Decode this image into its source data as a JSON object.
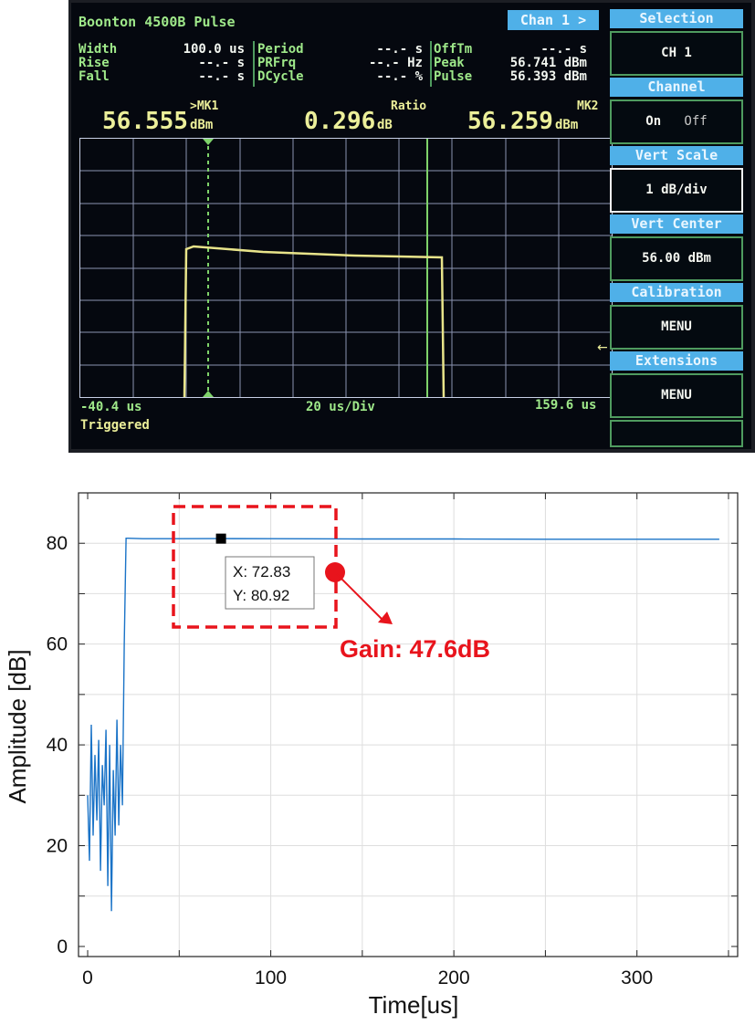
{
  "scope": {
    "title": "Boonton 4500B Pulse",
    "chan_tab": "Chan 1 >",
    "meas": {
      "width_label": "Width",
      "width_value": "100.0 us",
      "rise_label": "Rise",
      "rise_value": "--.- s",
      "fall_label": "Fall",
      "fall_value": "--.- s",
      "period_label": "Period",
      "period_value": "--.- s",
      "prfrq_label": "PRFrq",
      "prfrq_value": "--.- Hz",
      "dcycle_label": "DCycle",
      "dcycle_value": "--.- %",
      "offtm_label": "OffTm",
      "offtm_value": "--.- s",
      "peak_label": "Peak",
      "peak_value": "56.741 dBm",
      "pulse_label": "Pulse",
      "pulse_value": "56.393 dBm"
    },
    "readouts": {
      "mk1_label": ">MK1",
      "mk1_value": "56.555",
      "mk1_unit": "dBm",
      "ratio_label": "Ratio",
      "ratio_value": "0.296",
      "ratio_unit": "dB",
      "mk2_label": "MK2",
      "mk2_value": "56.259",
      "mk2_unit": "dBm"
    },
    "time_start": "-40.4 us",
    "time_div": "20 us/Div",
    "time_end": "159.6 us",
    "trigger_status": "Triggered",
    "softkeys": [
      {
        "header": "Selection",
        "value": "CH 1"
      },
      {
        "header": "Channel",
        "value_on": "On",
        "value_off": "Off"
      },
      {
        "header": "Vert Scale",
        "value": "1 dB/div"
      },
      {
        "header": "Vert Center",
        "value": "56.00 dBm"
      },
      {
        "header": "Calibration",
        "value": "MENU"
      },
      {
        "header": "Extensions",
        "value": "MENU"
      }
    ],
    "trace_color": "#e8e48a",
    "mk1_color": "#7fd36a",
    "mk2_color": "#7fd36a"
  },
  "chart_data": {
    "type": "line",
    "xlabel": "Time[us]",
    "ylabel": "Amplitude [dB]",
    "xlim": [
      -5,
      355
    ],
    "ylim": [
      -2,
      90
    ],
    "xticks": [
      0,
      100,
      200,
      300
    ],
    "yticks": [
      0,
      20,
      40,
      60,
      80
    ],
    "grid": true,
    "series_color": "#1a73c7",
    "series": [
      {
        "x": [
          0,
          1,
          2,
          3,
          4,
          5,
          6,
          7,
          8,
          9,
          10,
          11,
          12,
          13,
          14,
          15,
          16,
          17,
          18,
          19,
          20,
          21,
          22,
          30,
          50,
          72.83,
          100,
          150,
          200,
          250,
          300,
          345
        ],
        "values": [
          30,
          17,
          44,
          22,
          38,
          25,
          41,
          15,
          36,
          28,
          43,
          12,
          40,
          7,
          35,
          22,
          45,
          24,
          40,
          28,
          60,
          81,
          81,
          80.9,
          80.9,
          80.92,
          80.9,
          80.85,
          80.85,
          80.8,
          80.8,
          80.8
        ]
      }
    ],
    "datatip": {
      "x_label": "X: 72.83",
      "y_label": "Y: 80.92",
      "x": 72.83,
      "y": 80.92
    },
    "annotation": {
      "text": "Gain: 47.6dB",
      "color": "#e8141c"
    }
  }
}
